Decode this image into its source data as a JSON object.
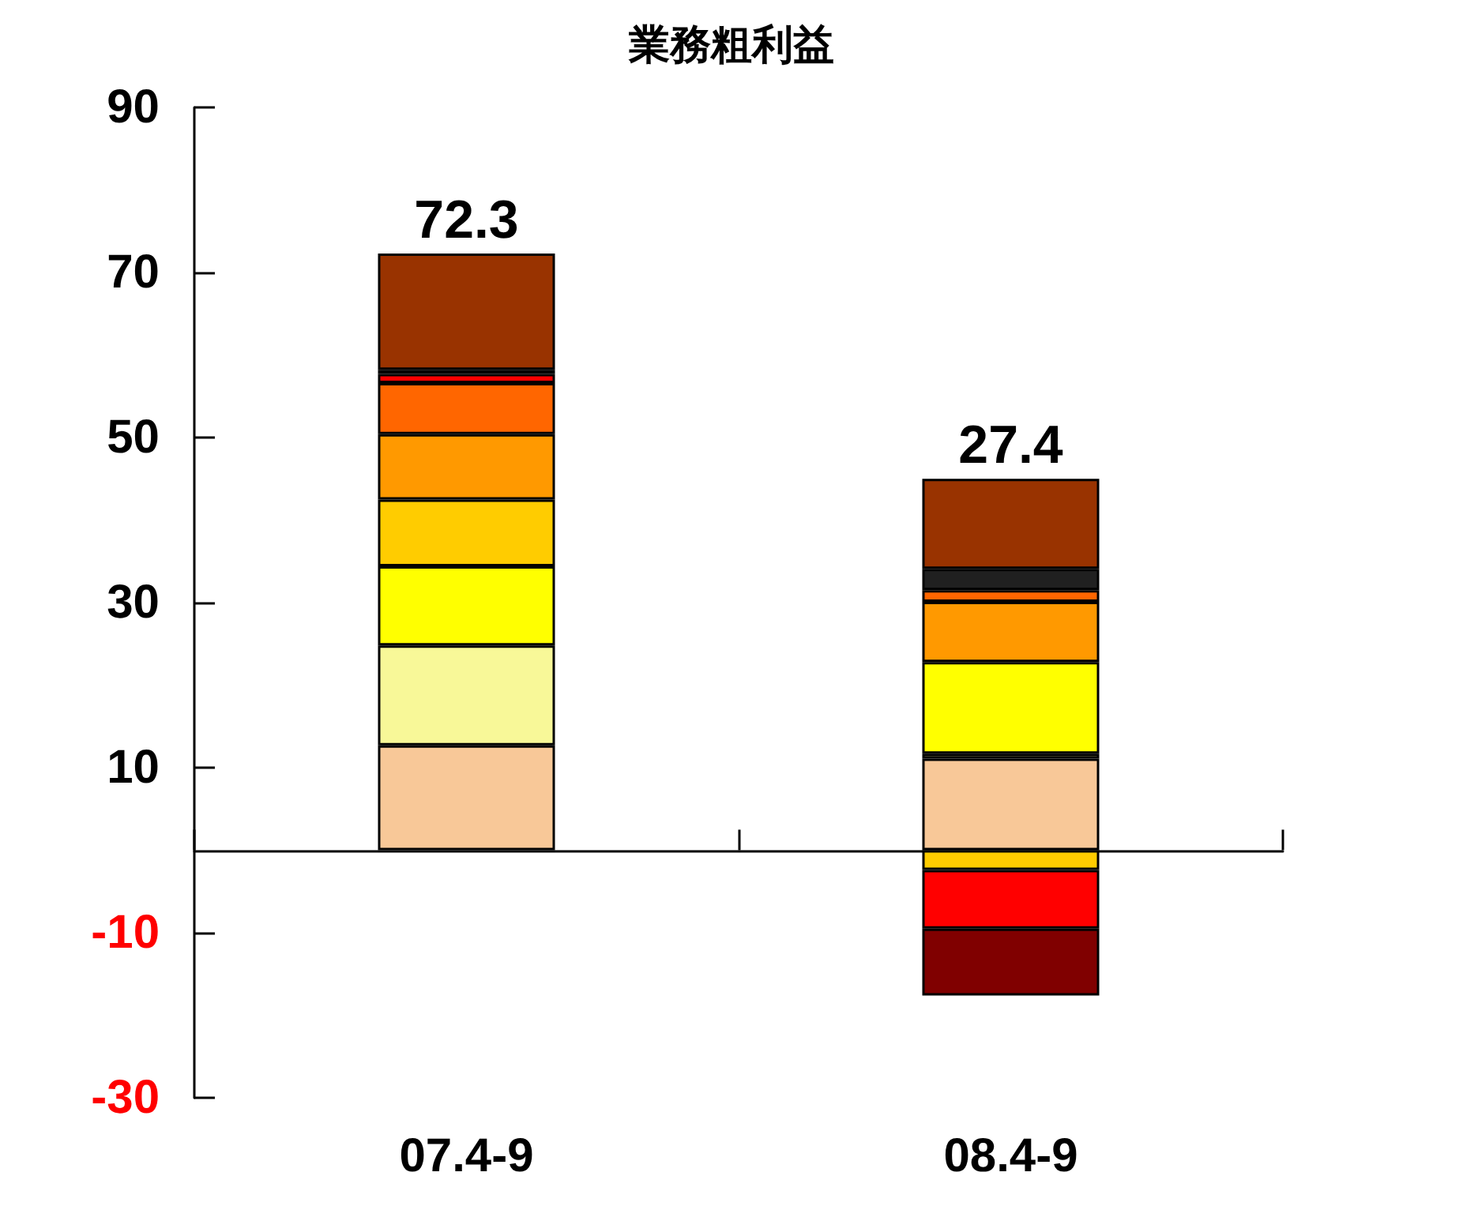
{
  "chart_data": {
    "type": "bar",
    "stacked": true,
    "title": "業務粗利益",
    "categories": [
      "07.4-9",
      "08.4-9"
    ],
    "series": [
      {
        "color": "#f8c898",
        "values": [
          12.7,
          11.1
        ]
      },
      {
        "color": "#f8f898",
        "values": [
          12.1,
          0.6
        ]
      },
      {
        "color": "#ffff00",
        "values": [
          9.6,
          11.1
        ]
      },
      {
        "color": "#ffcc00",
        "values": [
          8.1,
          -2.4
        ]
      },
      {
        "color": "#ff9900",
        "values": [
          7.9,
          7.3
        ]
      },
      {
        "color": "#ff6600",
        "values": [
          6.2,
          1.4
        ]
      },
      {
        "color": "#ff0000",
        "values": [
          1.1,
          -7.1
        ]
      },
      {
        "color": "#202020",
        "values": [
          0.5,
          2.6
        ]
      },
      {
        "color": "#800000",
        "values": [
          null,
          -8.1
        ]
      },
      {
        "color": "#993300",
        "values": [
          14.1,
          10.9
        ]
      }
    ],
    "totals": [
      "72.3",
      "27.4"
    ],
    "ylim": [
      -30,
      90
    ],
    "yticks": [
      -30,
      -10,
      10,
      30,
      50,
      70,
      90
    ],
    "grid": false
  }
}
